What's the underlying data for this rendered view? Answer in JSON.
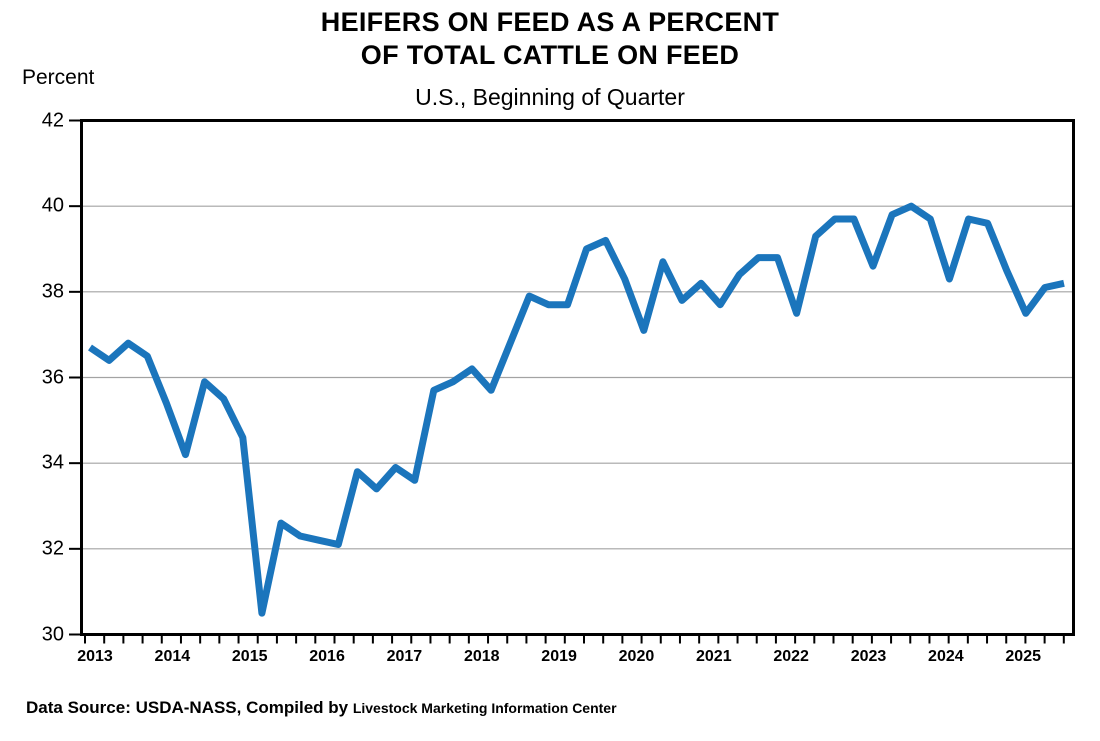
{
  "header": {
    "title_line1": "HEIFERS ON FEED AS A PERCENT",
    "title_line2": "OF TOTAL CATTLE ON FEED",
    "subtitle": "U.S., Beginning of Quarter",
    "y_axis_unit_label": "Percent"
  },
  "footer": {
    "source_prefix": "Data Source:  USDA-NASS, Compiled  by ",
    "source_org": "Livestock Marketing Information Center"
  },
  "chart_data": {
    "type": "line",
    "title": "HEIFERS ON FEED AS A PERCENT OF TOTAL CATTLE ON FEED",
    "subtitle": "U.S., Beginning of Quarter",
    "xlabel": "",
    "ylabel": "Percent",
    "ylim": [
      30,
      42
    ],
    "yticks": [
      42,
      40,
      38,
      36,
      34,
      32,
      30
    ],
    "gridline_values": [
      40,
      38,
      36,
      34,
      32
    ],
    "grid": "horizontal",
    "legend": "none",
    "line_color": "#1b75bc",
    "series_name": "Heifers on feed as percent of total cattle on feed",
    "xtick_years": [
      "2013",
      "2014",
      "2015",
      "2016",
      "2017",
      "2018",
      "2019",
      "2020",
      "2021",
      "2022",
      "2023",
      "2024",
      "2025"
    ],
    "x": [
      "2013 Q1",
      "2013 Q2",
      "2013 Q3",
      "2013 Q4",
      "2014 Q1",
      "2014 Q2",
      "2014 Q3",
      "2014 Q4",
      "2015 Q1",
      "2015 Q2",
      "2015 Q3",
      "2015 Q4",
      "2016 Q1",
      "2016 Q2",
      "2016 Q3",
      "2016 Q4",
      "2017 Q1",
      "2017 Q2",
      "2017 Q3",
      "2017 Q4",
      "2018 Q1",
      "2018 Q2",
      "2018 Q3",
      "2018 Q4",
      "2019 Q1",
      "2019 Q2",
      "2019 Q3",
      "2019 Q4",
      "2020 Q1",
      "2020 Q2",
      "2020 Q3",
      "2020 Q4",
      "2021 Q1",
      "2021 Q2",
      "2021 Q3",
      "2021 Q4",
      "2022 Q1",
      "2022 Q2",
      "2022 Q3",
      "2022 Q4",
      "2023 Q1",
      "2023 Q2",
      "2023 Q3",
      "2023 Q4",
      "2024 Q1",
      "2024 Q2",
      "2024 Q3",
      "2024 Q4",
      "2025 Q1",
      "2025 Q2",
      "2025 Q3",
      "2025 Q4"
    ],
    "values": [
      36.7,
      36.4,
      36.8,
      36.5,
      35.4,
      34.2,
      35.9,
      35.5,
      34.6,
      30.5,
      32.6,
      32.3,
      32.2,
      32.1,
      33.8,
      33.4,
      33.9,
      33.6,
      35.7,
      35.9,
      36.2,
      35.7,
      36.8,
      37.9,
      37.7,
      37.7,
      39.0,
      39.2,
      38.3,
      37.1,
      38.7,
      37.8,
      38.2,
      37.7,
      38.4,
      38.8,
      38.8,
      37.5,
      39.3,
      39.7,
      39.7,
      38.6,
      39.8,
      40.0,
      39.7,
      38.3,
      39.7,
      39.6,
      38.5,
      37.5,
      38.1,
      38.2
    ]
  }
}
